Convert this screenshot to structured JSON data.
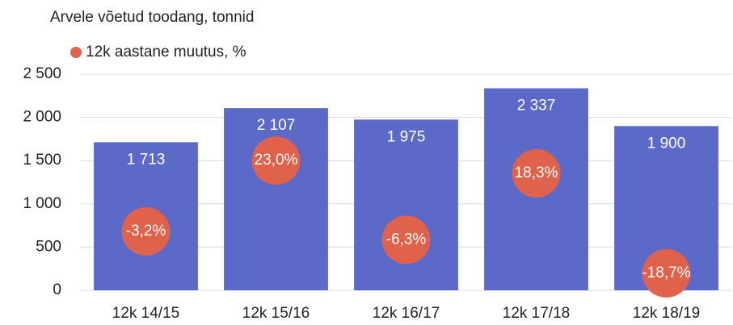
{
  "chart_data": {
    "type": "bar",
    "title": "Arvele võetud toodang, tonnid",
    "categories": [
      "12k 14/15",
      "12k 15/16",
      "12k 16/17",
      "12k 17/18",
      "12k 18/19"
    ],
    "series": [
      {
        "color": "#5b6ac8",
        "values": [
          1713,
          2107,
          1975,
          2337,
          1900
        ],
        "value_labels": [
          "1 713",
          "2 107",
          "1 975",
          "2 337",
          "1 900"
        ]
      },
      {
        "name": "12k aastane muutus, %",
        "type": "scatter",
        "axis": "y2",
        "color": "#e0624a",
        "values": [
          -3.2,
          23.0,
          -6.3,
          18.3,
          -18.7
        ],
        "value_labels": [
          "-3,2%",
          "23,0%",
          "-6,3%",
          "18,3%",
          "-18,7%"
        ]
      }
    ],
    "ylim": [
      0,
      2500
    ],
    "yticks": [
      0,
      500,
      {
        "value": 1000,
        "label": "1 000"
      },
      {
        "value": 1500,
        "label": "1 500"
      },
      {
        "value": 2000,
        "label": "2 000"
      },
      {
        "value": 2500,
        "label": "2 500"
      }
    ],
    "y2lim": [
      -25,
      55
    ],
    "grid": true,
    "legend": "top-left"
  }
}
